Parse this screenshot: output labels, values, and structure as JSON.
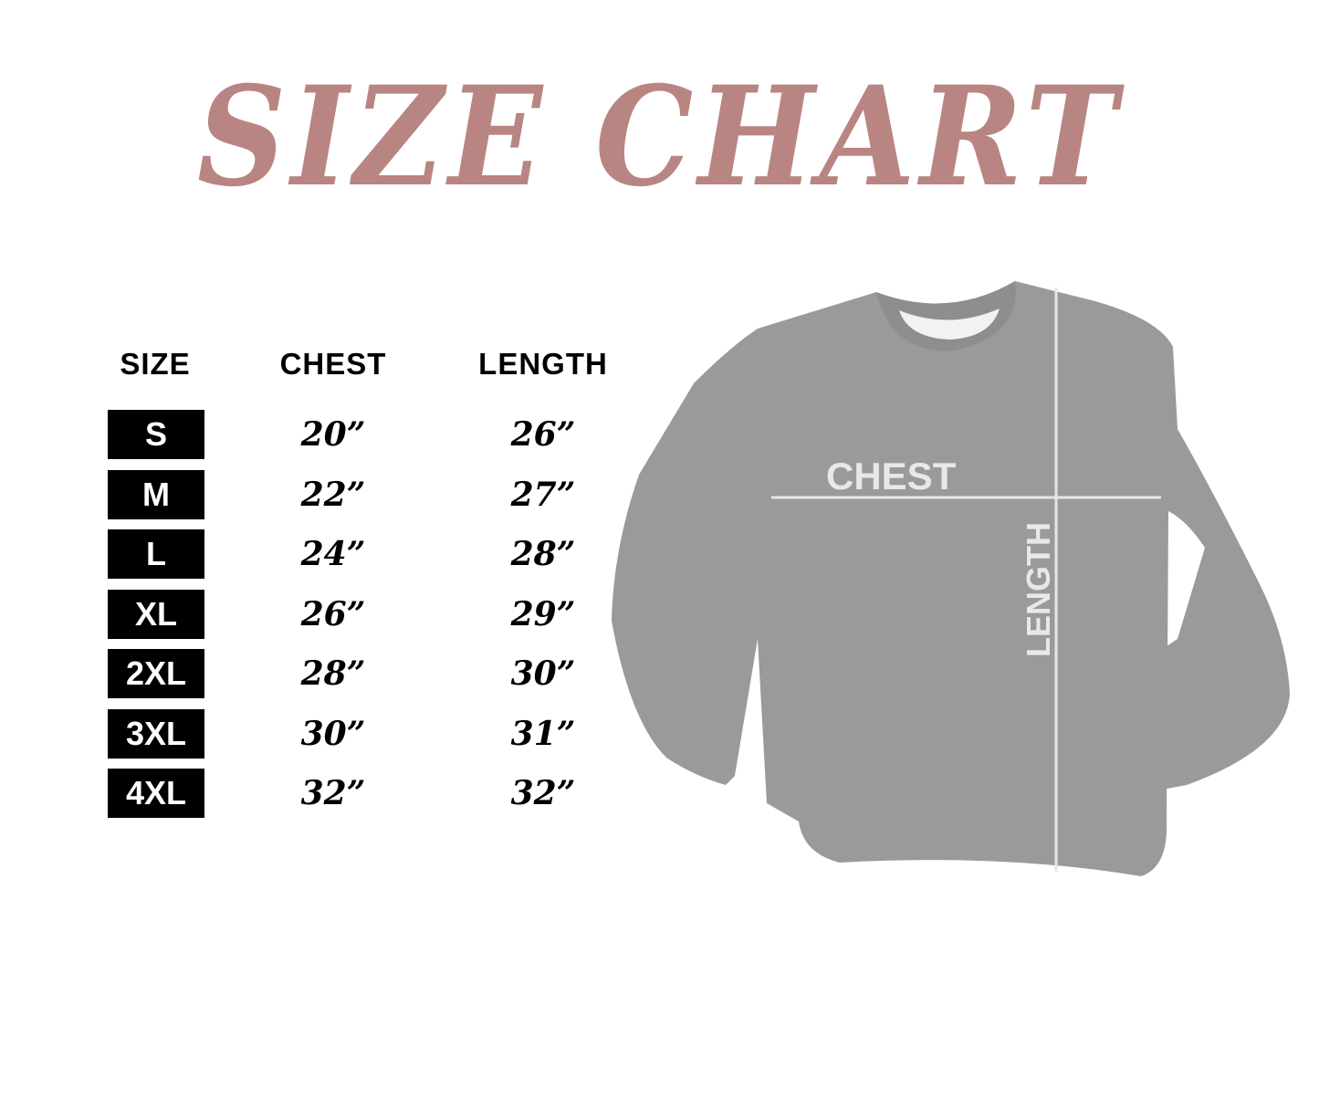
{
  "title": "SIZE CHART",
  "colors": {
    "title": "#b98582",
    "garment": "#9a9a9a",
    "measure_lines": "#e6e6e6"
  },
  "table": {
    "headers": [
      "SIZE",
      "CHEST",
      "LENGTH"
    ],
    "rows": [
      {
        "size": "S",
        "chest": "20”",
        "length": "26”"
      },
      {
        "size": "M",
        "chest": "22”",
        "length": "27”"
      },
      {
        "size": "L",
        "chest": "24”",
        "length": "28”"
      },
      {
        "size": "XL",
        "chest": "26”",
        "length": "29”"
      },
      {
        "size": "2XL",
        "chest": "28”",
        "length": "30”"
      },
      {
        "size": "3XL",
        "chest": "30”",
        "length": "31”"
      },
      {
        "size": "4XL",
        "chest": "32”",
        "length": "32”"
      }
    ]
  },
  "garment": {
    "chest_label": "CHEST",
    "length_label": "LENGTH"
  }
}
